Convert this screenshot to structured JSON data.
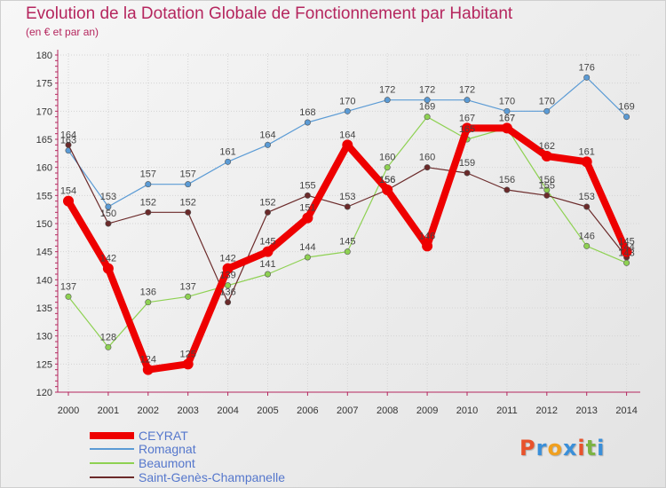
{
  "header": {
    "title": "Evolution de la Dotation Globale de Fonctionnement par Habitant",
    "subtitle": "(en € et par an)"
  },
  "logo": {
    "text": "Proxiti",
    "colors": [
      "#e8522b",
      "#3a8fd9",
      "#f0a020",
      "#3a8fd9",
      "#e8522b",
      "#7cb342",
      "#3a8fd9"
    ]
  },
  "chart_data": {
    "type": "line",
    "title": "Evolution de la Dotation Globale de Fonctionnement par Habitant",
    "subtitle": "(en € et par an)",
    "x": [
      "2000",
      "2001",
      "2002",
      "2003",
      "2004",
      "2005",
      "2006",
      "2007",
      "2008",
      "2009",
      "2010",
      "2011",
      "2012",
      "2013",
      "2014"
    ],
    "ylim": [
      120,
      180
    ],
    "yticks": [
      120,
      125,
      130,
      135,
      140,
      145,
      150,
      155,
      160,
      165,
      170,
      175,
      180
    ],
    "grid": true,
    "legend_position": "bottom-left",
    "series": [
      {
        "name": "Romagnat",
        "color": "#5b9bd5",
        "values": [
          163,
          153,
          157,
          157,
          161,
          164,
          168,
          170,
          172,
          172,
          172,
          170,
          170,
          176,
          169
        ]
      },
      {
        "name": "Beaumont",
        "color": "#8ed152",
        "values": [
          137,
          128,
          136,
          137,
          139,
          141,
          144,
          145,
          160,
          169,
          165,
          167,
          156,
          146,
          143
        ]
      },
      {
        "name": "Saint-Genès-Champanelle",
        "color": "#6b2a2a",
        "values": [
          164,
          150,
          152,
          152,
          136,
          152,
          155,
          153,
          156,
          160,
          159,
          156,
          155,
          153,
          144
        ]
      },
      {
        "name": "CEYRAT",
        "color": "#ee0000",
        "values": [
          154,
          142,
          124,
          125,
          142,
          145,
          151,
          164,
          156,
          146,
          167,
          167,
          162,
          161,
          145
        ]
      }
    ]
  }
}
